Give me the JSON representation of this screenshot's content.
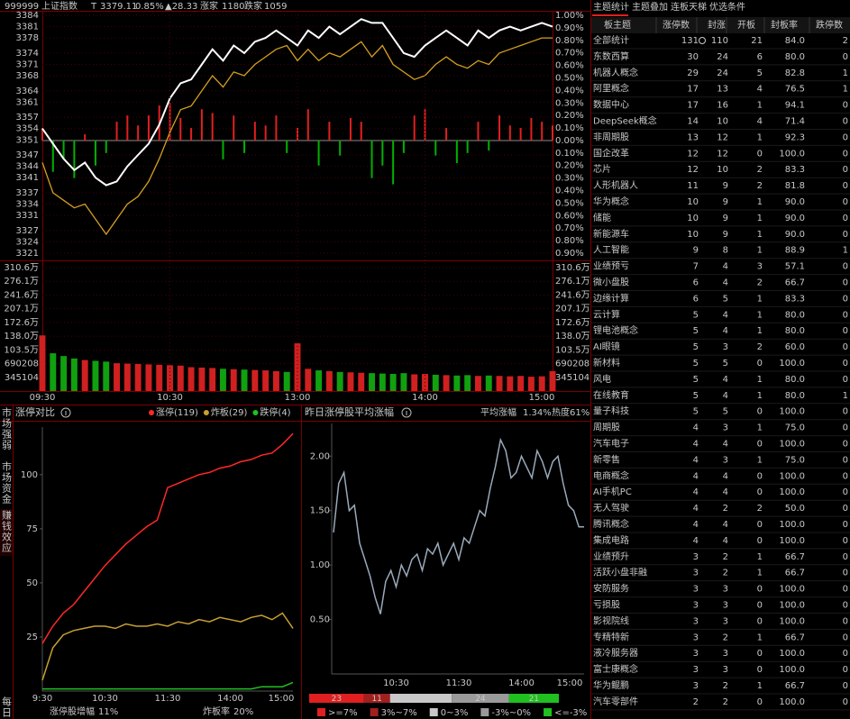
{
  "header": {
    "code": "999999",
    "name": "上证指数",
    "flag": "T",
    "price": "3379.11",
    "pct": "0.85%",
    "change": "▲28.33",
    "up_label": "涨家",
    "up": "1180",
    "down_label": "跌家",
    "down": "1059"
  },
  "intraday": {
    "type": "line",
    "ylim": [
      3321,
      3384
    ],
    "yticks": [
      3384,
      3381,
      3378,
      3374,
      3371,
      3368,
      3364,
      3361,
      3357,
      3354,
      3351,
      3347,
      3344,
      3341,
      3337,
      3334,
      3331,
      3327,
      3324,
      3321
    ],
    "y2lim": [
      -0.9,
      1.0
    ],
    "y2ticks": [
      {
        "value": 1.0,
        "label": "1.00%"
      },
      {
        "value": 0.9,
        "label": "0.90%"
      },
      {
        "value": 0.8,
        "label": "0.80%"
      },
      {
        "value": 0.7,
        "label": "0.70%"
      },
      {
        "value": 0.6,
        "label": "0.60%"
      },
      {
        "value": 0.5,
        "label": "0.50%"
      },
      {
        "value": 0.4,
        "label": "0.40%"
      },
      {
        "value": 0.3,
        "label": "0.30%"
      },
      {
        "value": 0.2,
        "label": "0.20%"
      },
      {
        "value": 0.1,
        "label": "0.10%"
      },
      {
        "value": 0,
        "label": "0.00%"
      },
      {
        "value": -0.1,
        "label": "0.10%"
      },
      {
        "value": -0.2,
        "label": "0.20%"
      },
      {
        "value": -0.3,
        "label": "0.30%"
      },
      {
        "value": -0.4,
        "label": "0.40%"
      },
      {
        "value": -0.5,
        "label": "0.50%"
      },
      {
        "value": -0.6,
        "label": "0.60%"
      },
      {
        "value": -0.7,
        "label": "0.70%"
      },
      {
        "value": -0.8,
        "label": "0.80%"
      },
      {
        "value": -0.9,
        "label": "0.90%"
      }
    ],
    "xticks": [
      "09:30",
      "10:30",
      "13:00",
      "14:00",
      "15:00"
    ],
    "series": [
      {
        "color": "#ffffff",
        "values": [
          3354,
          3350,
          3346,
          3343,
          3345,
          3341,
          3339,
          3340,
          3344,
          3347,
          3350,
          3355,
          3362,
          3366,
          3367,
          3371,
          3375,
          3372,
          3376,
          3374,
          3377,
          3378,
          3380,
          3378,
          3376,
          3380,
          3378,
          3381,
          3379,
          3381,
          3383,
          3382,
          3382,
          3378,
          3374,
          3373,
          3376,
          3378,
          3380,
          3378,
          3376,
          3380,
          3378,
          3380,
          3381,
          3380,
          3381,
          3382,
          3381
        ]
      },
      {
        "color": "#d4a020",
        "values": [
          3345,
          3337,
          3335,
          3333,
          3334,
          3330,
          3326,
          3330,
          3334,
          3336,
          3340,
          3346,
          3353,
          3359,
          3360,
          3364,
          3368,
          3365,
          3369,
          3368,
          3371,
          3373,
          3375,
          3376,
          3372,
          3375,
          3372,
          3374,
          3373,
          3375,
          3377,
          3373,
          3376,
          3371,
          3369,
          3367,
          3368,
          3371,
          3373,
          3371,
          3370,
          3372,
          3371,
          3374,
          3375,
          3376,
          3377,
          3378,
          3378
        ]
      }
    ],
    "bars": {
      "up_color": "#e02020",
      "down_color": "#00b000",
      "values": [
        0.1,
        -0.25,
        -0.15,
        -0.3,
        0.05,
        -0.2,
        -0.1,
        0.15,
        0.2,
        0.12,
        0.2,
        0.28,
        0.3,
        0.18,
        0.1,
        0.25,
        0.22,
        -0.15,
        0.2,
        -0.1,
        0.15,
        0.12,
        0.2,
        -0.1,
        0.1,
        0.25,
        -0.2,
        0.15,
        -0.12,
        0.18,
        0.15,
        -0.3,
        -0.2,
        -0.35,
        -0.1,
        0.2,
        0.25,
        -0.12,
        0.1,
        -0.18,
        -0.1,
        0.15,
        -0.08,
        0.2,
        0.12,
        0.1,
        0.18,
        0.15,
        0.12
      ]
    },
    "volume": {
      "ylim": [
        0,
        3105936
      ],
      "yticks": [
        {
          "value": 3105936,
          "label": "310.6万"
        },
        {
          "value": 2760832,
          "label": "276.1万"
        },
        {
          "value": 2415728,
          "label": "241.6万"
        },
        {
          "value": 2070624,
          "label": "207.1万"
        },
        {
          "value": 1725520,
          "label": "172.6万"
        },
        {
          "value": 1380416,
          "label": "138.0万"
        },
        {
          "value": 1035312,
          "label": "103.5万"
        },
        690208,
        345104
      ],
      "values": [
        1400000,
        950000,
        880000,
        820000,
        780000,
        760000,
        740000,
        700000,
        690000,
        680000,
        670000,
        660000,
        650000,
        640000,
        600000,
        590000,
        580000,
        560000,
        550000,
        540000,
        530000,
        520000,
        500000,
        480000,
        1200000,
        560000,
        520000,
        500000,
        480000,
        470000,
        460000,
        450000,
        440000,
        430000,
        450000,
        420000,
        430000,
        410000,
        400000,
        390000,
        400000,
        380000,
        390000,
        380000,
        370000,
        380000,
        360000,
        370000,
        500000
      ]
    }
  },
  "side_tabs": [
    "市场强弱",
    "市场资金",
    "赚钱效应",
    "每日"
  ],
  "limit_chart": {
    "type": "line",
    "title": "涨停对比",
    "ylim": [
      0,
      122
    ],
    "yticks": [
      25,
      50,
      75,
      100
    ],
    "xticks": [
      "9:30",
      "10:30",
      "11:30",
      "14:00",
      "15:00"
    ],
    "series": [
      {
        "name": "涨停(119)",
        "color": "#ff2828",
        "values": [
          22,
          30,
          36,
          40,
          46,
          52,
          58,
          63,
          68,
          72,
          76,
          79,
          94,
          96,
          98,
          100,
          101,
          103,
          104,
          106,
          107,
          109,
          110,
          114,
          119
        ]
      },
      {
        "name": "炸板(29)",
        "color": "#c8a032",
        "values": [
          5,
          20,
          26,
          28,
          29,
          30,
          30,
          29,
          31,
          30,
          30,
          31,
          30,
          32,
          31,
          33,
          32,
          34,
          33,
          32,
          34,
          35,
          33,
          36,
          29
        ]
      },
      {
        "name": "跌停(4)",
        "color": "#20c020",
        "values": [
          1,
          1,
          1,
          1,
          1,
          1,
          1,
          1,
          1,
          1,
          1,
          1,
          1,
          1,
          1,
          1,
          1,
          1,
          1,
          1,
          1,
          2,
          2,
          2,
          4
        ]
      }
    ],
    "footer": [
      {
        "label": "涨停股增幅",
        "value": "11%",
        "color": "#ff3030"
      },
      {
        "label": "炸板率",
        "value": "20%",
        "color": "#20c020"
      }
    ]
  },
  "avg_chart": {
    "type": "line",
    "title": "昨日涨停股平均涨幅",
    "avg_label": "平均涨幅",
    "avg": "1.34%",
    "heat": "热度61%",
    "ylim": [
      0,
      2.3
    ],
    "yticks": [
      {
        "value": 0.5,
        "label": "0.50"
      },
      {
        "value": 1.0,
        "label": "1.00"
      },
      {
        "value": 1.5,
        "label": "1.50"
      },
      {
        "value": 2.0,
        "label": "2.00"
      }
    ],
    "xticks": [
      "10:30",
      "11:30",
      "14:00",
      "15:00"
    ],
    "series": [
      {
        "color": "#9aaabb",
        "values": [
          1.3,
          1.75,
          1.85,
          1.5,
          1.55,
          1.2,
          1.05,
          0.9,
          0.7,
          0.55,
          0.85,
          0.95,
          0.8,
          1.0,
          0.9,
          1.05,
          1.1,
          0.95,
          1.15,
          1.1,
          1.2,
          1.0,
          1.1,
          1.2,
          1.05,
          1.25,
          1.2,
          1.35,
          1.5,
          1.45,
          1.7,
          1.9,
          2.15,
          2.05,
          1.8,
          1.85,
          2.0,
          1.9,
          1.8,
          2.05,
          1.95,
          1.8,
          1.95,
          2.0,
          1.75,
          1.55,
          1.5,
          1.35,
          1.35
        ]
      }
    ],
    "distribution": {
      "values": [
        23,
        11,
        26,
        24,
        21
      ],
      "labels": [
        ">=7%",
        "3%~7%",
        "0~3%",
        "-3%~0%",
        "<=-3%"
      ],
      "colors": [
        "#e02020",
        "#a02020",
        "#c8c8c8",
        "#9a9a9a",
        "#20c020"
      ]
    }
  },
  "table": {
    "tabs": [
      "主题统计",
      "主题叠加",
      "连板天梯",
      "优选条件"
    ],
    "columns": [
      "板主题",
      "涨停数",
      "封涨",
      "开板",
      "封板率",
      "跌停数"
    ],
    "rows": [
      [
        "全部统计",
        "131",
        "110",
        "21",
        "84.0",
        "2"
      ],
      [
        "东数西算",
        "30",
        "24",
        "6",
        "80.0",
        "0"
      ],
      [
        "机器人概念",
        "29",
        "24",
        "5",
        "82.8",
        "1"
      ],
      [
        "阿里概念",
        "17",
        "13",
        "4",
        "76.5",
        "1"
      ],
      [
        "数据中心",
        "17",
        "16",
        "1",
        "94.1",
        "0"
      ],
      [
        "DeepSeek概念",
        "14",
        "10",
        "4",
        "71.4",
        "0"
      ],
      [
        "非周期股",
        "13",
        "12",
        "1",
        "92.3",
        "0"
      ],
      [
        "国企改革",
        "12",
        "12",
        "0",
        "100.0",
        "0"
      ],
      [
        "芯片",
        "12",
        "10",
        "2",
        "83.3",
        "0"
      ],
      [
        "人形机器人",
        "11",
        "9",
        "2",
        "81.8",
        "0"
      ],
      [
        "华为概念",
        "10",
        "9",
        "1",
        "90.0",
        "0"
      ],
      [
        "储能",
        "10",
        "9",
        "1",
        "90.0",
        "0"
      ],
      [
        "新能源车",
        "10",
        "9",
        "1",
        "90.0",
        "0"
      ],
      [
        "人工智能",
        "9",
        "8",
        "1",
        "88.9",
        "1"
      ],
      [
        "业绩预亏",
        "7",
        "4",
        "3",
        "57.1",
        "0"
      ],
      [
        "微小盘股",
        "6",
        "4",
        "2",
        "66.7",
        "0"
      ],
      [
        "边缘计算",
        "6",
        "5",
        "1",
        "83.3",
        "0"
      ],
      [
        "云计算",
        "5",
        "4",
        "1",
        "80.0",
        "0"
      ],
      [
        "锂电池概念",
        "5",
        "4",
        "1",
        "80.0",
        "0"
      ],
      [
        "AI眼镜",
        "5",
        "3",
        "2",
        "60.0",
        "0"
      ],
      [
        "新材料",
        "5",
        "5",
        "0",
        "100.0",
        "0"
      ],
      [
        "风电",
        "5",
        "4",
        "1",
        "80.0",
        "0"
      ],
      [
        "在线教育",
        "5",
        "4",
        "1",
        "80.0",
        "1"
      ],
      [
        "量子科技",
        "5",
        "5",
        "0",
        "100.0",
        "0"
      ],
      [
        "周期股",
        "4",
        "3",
        "1",
        "75.0",
        "0"
      ],
      [
        "汽车电子",
        "4",
        "4",
        "0",
        "100.0",
        "0"
      ],
      [
        "新零售",
        "4",
        "3",
        "1",
        "75.0",
        "0"
      ],
      [
        "电商概念",
        "4",
        "4",
        "0",
        "100.0",
        "0"
      ],
      [
        "AI手机PC",
        "4",
        "4",
        "0",
        "100.0",
        "0"
      ],
      [
        "无人驾驶",
        "4",
        "2",
        "2",
        "50.0",
        "0"
      ],
      [
        "腾讯概念",
        "4",
        "4",
        "0",
        "100.0",
        "0"
      ],
      [
        "集成电路",
        "4",
        "4",
        "0",
        "100.0",
        "0"
      ],
      [
        "业绩预升",
        "3",
        "2",
        "1",
        "66.7",
        "0"
      ],
      [
        "活跃小盘非融",
        "3",
        "2",
        "1",
        "66.7",
        "0"
      ],
      [
        "安防服务",
        "3",
        "3",
        "0",
        "100.0",
        "0"
      ],
      [
        "亏损股",
        "3",
        "3",
        "0",
        "100.0",
        "0"
      ],
      [
        "影视院线",
        "3",
        "3",
        "0",
        "100.0",
        "0"
      ],
      [
        "专精特新",
        "3",
        "2",
        "1",
        "66.7",
        "0"
      ],
      [
        "液冷服务器",
        "3",
        "3",
        "0",
        "100.0",
        "0"
      ],
      [
        "富士康概念",
        "3",
        "3",
        "0",
        "100.0",
        "0"
      ],
      [
        "华为鲲鹏",
        "3",
        "2",
        "1",
        "66.7",
        "0"
      ],
      [
        "汽车零部件",
        "2",
        "2",
        "0",
        "100.0",
        "0"
      ]
    ]
  }
}
